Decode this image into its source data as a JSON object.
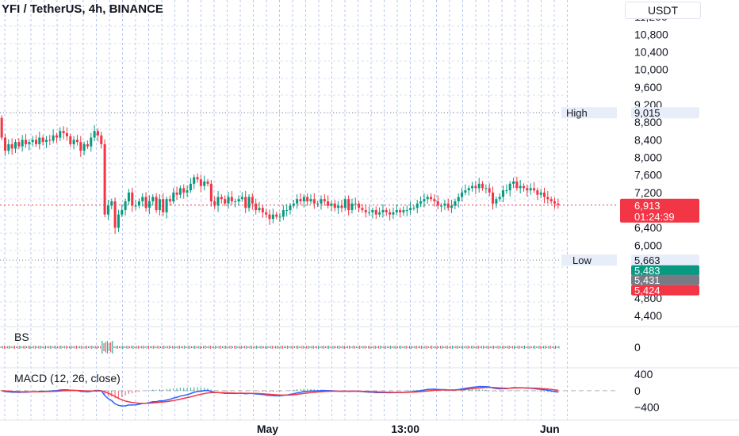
{
  "chart_data": {
    "type": "candlestick",
    "title": "YFI / TetherUS, 4h, BINANCE",
    "currency": "USDT",
    "y_ticks": [
      "11,200",
      "10,800",
      "10,400",
      "10,000",
      "9,600",
      "9,200",
      "8,800",
      "8,400",
      "8,000",
      "7,600",
      "7,200",
      "6,400",
      "6,000",
      "4,800",
      "4,400"
    ],
    "y_tick_values": [
      11200,
      10800,
      10400,
      10000,
      9600,
      9200,
      8800,
      8400,
      8000,
      7600,
      7200,
      6400,
      6000,
      4800,
      4400
    ],
    "x_ticks": [
      "May",
      "13:00",
      "Jun"
    ],
    "x_tick_fractions": [
      0.478,
      0.724,
      0.982
    ],
    "ylim": [
      4150,
      11400
    ],
    "grid": true,
    "high": {
      "label": "High",
      "value": 9015,
      "text": "9,015"
    },
    "low": {
      "label": "Low",
      "value": 5663,
      "text": "5,663"
    },
    "current_price": {
      "value": 6913,
      "text": "6,913",
      "countdown": "01:24:39"
    },
    "price_tags": [
      {
        "value": 5483,
        "text": "5,483",
        "color": "#089981"
      },
      {
        "value": 5431,
        "text": "5,431",
        "color": "#787b86"
      },
      {
        "value": 5424,
        "text": "5,424",
        "color": "#f23645"
      }
    ],
    "closes": [
      8450,
      8150,
      8300,
      8200,
      8350,
      8250,
      8400,
      8300,
      8350,
      8400,
      8300,
      8450,
      8350,
      8400,
      8380,
      8500,
      8450,
      8600,
      8550,
      8480,
      8300,
      8400,
      8350,
      8150,
      8300,
      8250,
      8450,
      8600,
      8500,
      8300,
      6700,
      6900,
      7000,
      6400,
      6700,
      6800,
      7000,
      7200,
      6900,
      6900,
      7000,
      7100,
      6850,
      7000,
      7100,
      6800,
      7050,
      6750,
      7050,
      7000,
      7200,
      7150,
      7300,
      7200,
      7250,
      7400,
      7550,
      7500,
      7350,
      7450,
      7400,
      7000,
      6900,
      7100,
      7050,
      6950,
      7100,
      7000,
      7000,
      7050,
      7100,
      6850,
      7100,
      6950,
      6800,
      6850,
      6750,
      6700,
      6600,
      6700,
      6650,
      6650,
      6800,
      6800,
      6900,
      6950,
      7050,
      7000,
      7100,
      7000,
      7050,
      6950,
      6950,
      7050,
      7000,
      6900,
      6950,
      6850,
      6900,
      6850,
      7050,
      6800,
      6950,
      6950,
      6850,
      6800,
      6750,
      6750,
      6800,
      6700,
      6750,
      6800,
      6750,
      6700,
      6750,
      6800,
      6750,
      6800,
      6800,
      6850,
      6850,
      6950,
      7000,
      7050,
      7100,
      7050,
      7000,
      6900,
      6900,
      6950,
      6850,
      6900,
      7000,
      7100,
      7200,
      7250,
      7300,
      7350,
      7300,
      7400,
      7300,
      7300,
      7200,
      6950,
      7050,
      7100,
      7250,
      7250,
      7400,
      7450,
      7300,
      7350,
      7300,
      7250,
      7300,
      7250,
      7150,
      7200,
      7100,
      7050,
      7000,
      6950,
      6913
    ],
    "macd_label": "MACD (12, 26, close)",
    "macd_ticks": [
      "400",
      "0",
      "−400"
    ],
    "macd_tick_values": [
      400,
      0,
      -400
    ],
    "macd_ylim": [
      -560,
      480
    ],
    "bs_label": "BS",
    "bs_tick": "0"
  },
  "colors": {
    "up": "#089981",
    "down": "#f23645",
    "grid": "#b8c7ee",
    "text": "#131722",
    "macd_line": "#2962ff",
    "signal_line": "#f23645",
    "tag_bg": "#e8eef9"
  }
}
